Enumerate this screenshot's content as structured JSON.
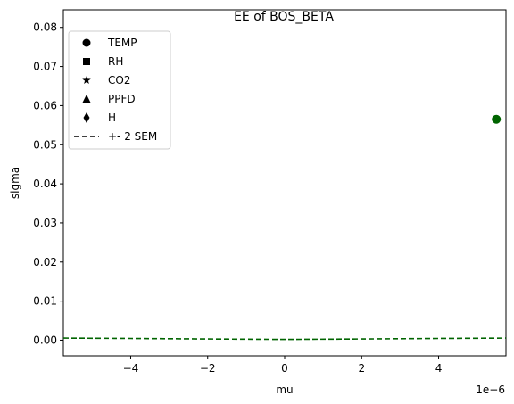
{
  "chart_data": {
    "type": "scatter",
    "title": "EE of BOS_BETA",
    "xlabel": "mu",
    "ylabel": "sigma",
    "x_scale_label": "1e−6",
    "xlim": [
      -5.75e-06,
      5.75e-06
    ],
    "ylim": [
      -0.004,
      0.0845
    ],
    "x_ticks": [
      -4e-06,
      -2e-06,
      0,
      2e-06,
      4e-06
    ],
    "x_tick_labels": [
      "−4",
      "−2",
      "0",
      "2",
      "4"
    ],
    "y_ticks": [
      0.0,
      0.01,
      0.02,
      0.03,
      0.04,
      0.05,
      0.06,
      0.07,
      0.08
    ],
    "y_tick_labels": [
      "0.00",
      "0.01",
      "0.02",
      "0.03",
      "0.04",
      "0.05",
      "0.06",
      "0.07",
      "0.08"
    ],
    "grid": false,
    "legend_position": "upper-left",
    "legend": [
      {
        "label": "TEMP",
        "marker": "circle"
      },
      {
        "label": "RH",
        "marker": "square"
      },
      {
        "label": "CO2",
        "marker": "star"
      },
      {
        "label": "PPFD",
        "marker": "triangle"
      },
      {
        "label": "H",
        "marker": "diamond"
      },
      {
        "label": "+- 2 SEM",
        "marker": "dashed-line"
      }
    ],
    "points": [
      {
        "series": "TEMP",
        "x": 5.5e-06,
        "y": 0.0565,
        "color": "#006400"
      }
    ],
    "sem_curve": {
      "color": "#006400",
      "x": [
        -5.75e-06,
        -4e-06,
        -2e-06,
        0,
        2e-06,
        4e-06,
        5.75e-06
      ],
      "y": [
        0.00055,
        0.00045,
        0.0003,
        0.0002,
        0.0003,
        0.00045,
        0.00055
      ]
    }
  }
}
